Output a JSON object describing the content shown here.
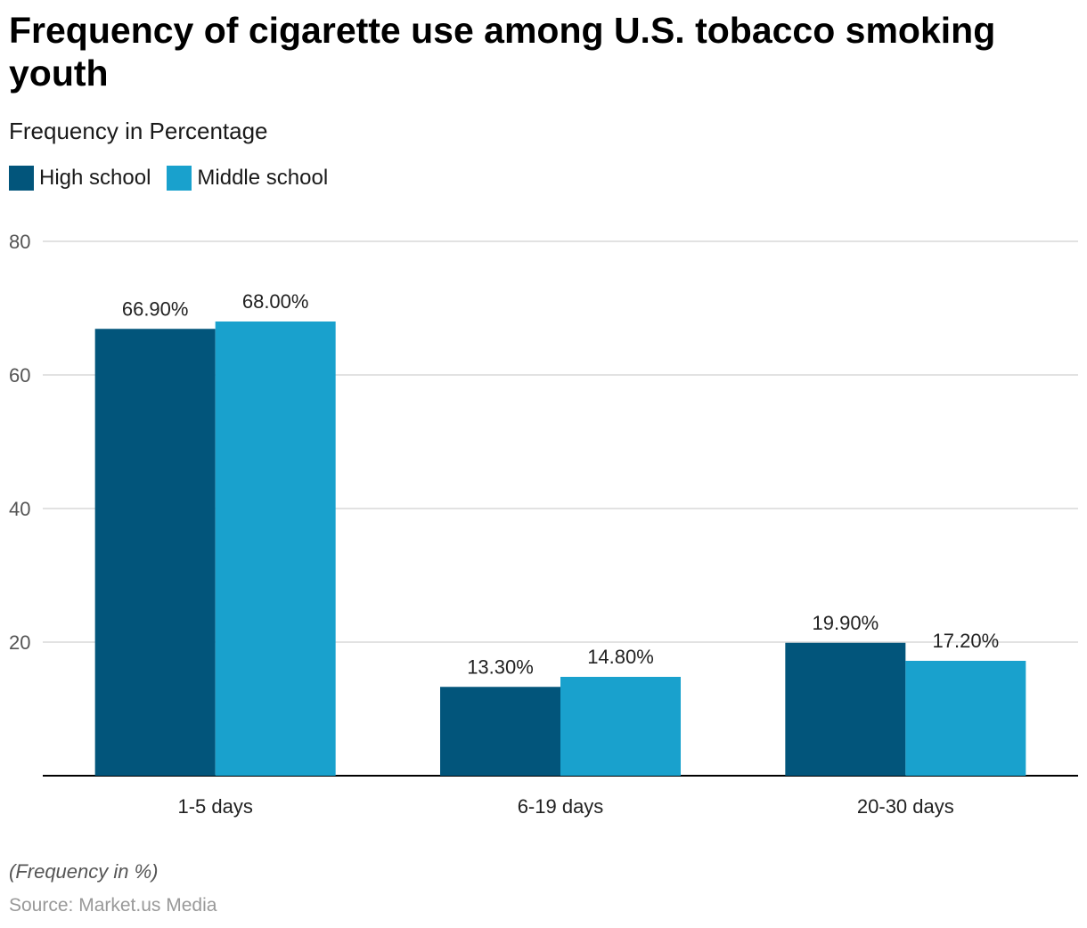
{
  "title": "Frequency of cigarette use among U.S. tobacco smoking youth",
  "subtitle": "Frequency in Percentage",
  "footnote": "(Frequency in %)",
  "source": "Source: Market.us Media",
  "colors": {
    "high_school": "#02557b",
    "middle_school": "#19a1cd",
    "grid": "#d9d9d9",
    "axis": "#000000"
  },
  "chart_data": {
    "type": "bar",
    "categories": [
      "1-5 days",
      "6-19 days",
      "20-30 days"
    ],
    "series": [
      {
        "name": "High school",
        "values": [
          66.9,
          13.3,
          19.9
        ],
        "labels": [
          "66.90%",
          "13.30%",
          "19.90%"
        ],
        "color": "#02557b"
      },
      {
        "name": "Middle school",
        "values": [
          68.0,
          14.8,
          17.2
        ],
        "labels": [
          "68.00%",
          "14.80%",
          "17.20%"
        ],
        "color": "#19a1cd"
      }
    ],
    "ylim": [
      0,
      80
    ],
    "yticks": [
      20,
      40,
      60,
      80
    ],
    "grid": true,
    "legend": "top-left"
  }
}
